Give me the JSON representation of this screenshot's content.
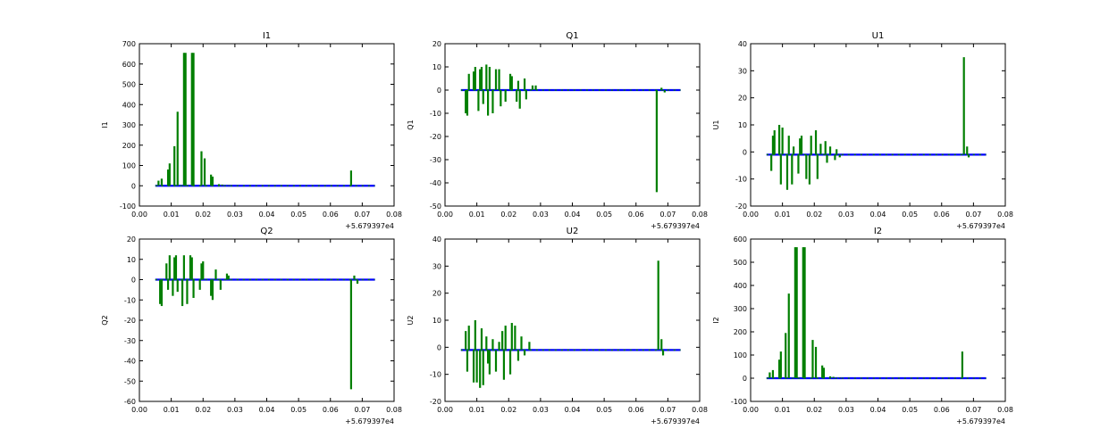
{
  "chart_data": [
    {
      "type": "line",
      "title": "I1",
      "ylabel": "I1",
      "xlim": [
        0.0,
        0.08
      ],
      "ylim": [
        -100,
        700
      ],
      "xticks": [
        "0.00",
        "0.01",
        "0.02",
        "0.03",
        "0.04",
        "0.05",
        "0.06",
        "0.07",
        "0.08"
      ],
      "yticks": [
        "-100",
        "0",
        "100",
        "200",
        "300",
        "400",
        "500",
        "600",
        "700"
      ],
      "x_offset_label": "+5.679397e4",
      "series": [
        {
          "color": "#0000ff",
          "x": [
            0.005,
            0.074
          ],
          "y": [
            0,
            0
          ]
        },
        {
          "color": "#007f00",
          "spikes": [
            [
              0.006,
              25
            ],
            [
              0.007,
              35
            ],
            [
              0.009,
              80
            ],
            [
              0.0095,
              110
            ],
            [
              0.011,
              195
            ],
            [
              0.012,
              365
            ],
            [
              0.014,
              655
            ],
            [
              0.0145,
              655
            ],
            [
              0.0165,
              655
            ],
            [
              0.017,
              655
            ],
            [
              0.0195,
              170
            ],
            [
              0.0205,
              135
            ],
            [
              0.0225,
              55
            ],
            [
              0.023,
              45
            ],
            [
              0.025,
              8
            ],
            [
              0.026,
              6
            ],
            [
              0.028,
              3
            ],
            [
              0.0665,
              75
            ]
          ]
        }
      ]
    },
    {
      "type": "line",
      "title": "Q1",
      "ylabel": "Q1",
      "xlim": [
        0.0,
        0.08
      ],
      "ylim": [
        -50,
        20
      ],
      "xticks": [
        "0.00",
        "0.01",
        "0.02",
        "0.03",
        "0.04",
        "0.05",
        "0.06",
        "0.07",
        "0.08"
      ],
      "yticks": [
        "-50",
        "-40",
        "-30",
        "-20",
        "-10",
        "0",
        "10",
        "20"
      ],
      "x_offset_label": "+5.679397e4",
      "series": [
        {
          "color": "#0000ff",
          "x": [
            0.005,
            0.074
          ],
          "y": [
            0,
            0
          ]
        },
        {
          "color": "#007f00",
          "spikes": [
            [
              0.0065,
              -10
            ],
            [
              0.007,
              -11
            ],
            [
              0.0075,
              7
            ],
            [
              0.009,
              8
            ],
            [
              0.0095,
              10
            ],
            [
              0.0105,
              -9
            ],
            [
              0.011,
              9
            ],
            [
              0.0115,
              10
            ],
            [
              0.012,
              -6
            ],
            [
              0.013,
              11
            ],
            [
              0.0135,
              -11
            ],
            [
              0.014,
              10
            ],
            [
              0.015,
              -10
            ],
            [
              0.016,
              9
            ],
            [
              0.017,
              9
            ],
            [
              0.0175,
              -7
            ],
            [
              0.019,
              -5
            ],
            [
              0.0205,
              7
            ],
            [
              0.021,
              6
            ],
            [
              0.0225,
              -5
            ],
            [
              0.023,
              4
            ],
            [
              0.0235,
              -8
            ],
            [
              0.025,
              5
            ],
            [
              0.0255,
              -4
            ],
            [
              0.0275,
              2
            ],
            [
              0.0285,
              2
            ],
            [
              0.0665,
              -44
            ],
            [
              0.068,
              1
            ],
            [
              0.069,
              -1
            ]
          ]
        }
      ]
    },
    {
      "type": "line",
      "title": "U1",
      "ylabel": "U1",
      "xlim": [
        0.0,
        0.08
      ],
      "ylim": [
        -20,
        40
      ],
      "xticks": [
        "0.00",
        "0.01",
        "0.02",
        "0.03",
        "0.04",
        "0.05",
        "0.06",
        "0.07",
        "0.08"
      ],
      "yticks": [
        "-20",
        "-10",
        "0",
        "10",
        "20",
        "30",
        "40"
      ],
      "x_offset_label": "+5.679397e4",
      "series": [
        {
          "color": "#0000ff",
          "x": [
            0.005,
            0.074
          ],
          "y": [
            -1,
            -1
          ]
        },
        {
          "color": "#007f00",
          "spikes": [
            [
              0.0065,
              -7
            ],
            [
              0.007,
              6
            ],
            [
              0.0075,
              8
            ],
            [
              0.009,
              10
            ],
            [
              0.0095,
              -12
            ],
            [
              0.01,
              9
            ],
            [
              0.0115,
              -14
            ],
            [
              0.012,
              6
            ],
            [
              0.013,
              -12
            ],
            [
              0.0135,
              2
            ],
            [
              0.015,
              -8
            ],
            [
              0.0155,
              5
            ],
            [
              0.016,
              6
            ],
            [
              0.0175,
              -10
            ],
            [
              0.0185,
              -12
            ],
            [
              0.019,
              6
            ],
            [
              0.0205,
              8
            ],
            [
              0.021,
              -10
            ],
            [
              0.022,
              3
            ],
            [
              0.0235,
              4
            ],
            [
              0.024,
              -4
            ],
            [
              0.025,
              2
            ],
            [
              0.0265,
              -3
            ],
            [
              0.027,
              1
            ],
            [
              0.028,
              -2
            ],
            [
              0.067,
              35
            ],
            [
              0.068,
              2
            ],
            [
              0.0685,
              -2
            ]
          ]
        }
      ]
    },
    {
      "type": "line",
      "title": "Q2",
      "ylabel": "Q2",
      "xlim": [
        0.0,
        0.08
      ],
      "ylim": [
        -60,
        20
      ],
      "xticks": [
        "0.00",
        "0.01",
        "0.02",
        "0.03",
        "0.04",
        "0.05",
        "0.06",
        "0.07",
        "0.08"
      ],
      "yticks": [
        "-60",
        "-50",
        "-40",
        "-30",
        "-20",
        "-10",
        "0",
        "10",
        "20"
      ],
      "x_offset_label": "+5.679397e4",
      "series": [
        {
          "color": "#0000ff",
          "x": [
            0.005,
            0.074
          ],
          "y": [
            0,
            0
          ]
        },
        {
          "color": "#007f00",
          "spikes": [
            [
              0.0065,
              -12
            ],
            [
              0.007,
              -13
            ],
            [
              0.0085,
              8
            ],
            [
              0.009,
              -5
            ],
            [
              0.0095,
              12
            ],
            [
              0.0105,
              -8
            ],
            [
              0.011,
              11
            ],
            [
              0.0115,
              12
            ],
            [
              0.012,
              -6
            ],
            [
              0.0135,
              -13
            ],
            [
              0.014,
              12
            ],
            [
              0.015,
              -12
            ],
            [
              0.016,
              12
            ],
            [
              0.0165,
              11
            ],
            [
              0.017,
              -9
            ],
            [
              0.019,
              -5
            ],
            [
              0.0195,
              8
            ],
            [
              0.02,
              9
            ],
            [
              0.0225,
              -8
            ],
            [
              0.023,
              -10
            ],
            [
              0.024,
              5
            ],
            [
              0.0255,
              -5
            ],
            [
              0.0275,
              3
            ],
            [
              0.028,
              2
            ],
            [
              0.0665,
              -54
            ],
            [
              0.0675,
              2
            ],
            [
              0.0685,
              -2
            ]
          ]
        }
      ]
    },
    {
      "type": "line",
      "title": "U2",
      "ylabel": "U2",
      "xlim": [
        0.0,
        0.08
      ],
      "ylim": [
        -20,
        40
      ],
      "xticks": [
        "0.00",
        "0.01",
        "0.02",
        "0.03",
        "0.04",
        "0.05",
        "0.06",
        "0.07",
        "0.08"
      ],
      "yticks": [
        "-20",
        "-10",
        "0",
        "10",
        "20",
        "30",
        "40"
      ],
      "x_offset_label": "+5.679397e4",
      "series": [
        {
          "color": "#0000ff",
          "x": [
            0.005,
            0.074
          ],
          "y": [
            -1,
            -1
          ]
        },
        {
          "color": "#007f00",
          "spikes": [
            [
              0.0065,
              6
            ],
            [
              0.007,
              -9
            ],
            [
              0.0075,
              8
            ],
            [
              0.009,
              -13
            ],
            [
              0.0095,
              10
            ],
            [
              0.01,
              -13
            ],
            [
              0.011,
              -15
            ],
            [
              0.0115,
              7
            ],
            [
              0.012,
              -14
            ],
            [
              0.013,
              4
            ],
            [
              0.0135,
              -6
            ],
            [
              0.014,
              -10
            ],
            [
              0.015,
              3
            ],
            [
              0.016,
              -9
            ],
            [
              0.017,
              2
            ],
            [
              0.018,
              6
            ],
            [
              0.0185,
              -12
            ],
            [
              0.019,
              8
            ],
            [
              0.0205,
              -10
            ],
            [
              0.021,
              9
            ],
            [
              0.022,
              8
            ],
            [
              0.023,
              -5
            ],
            [
              0.024,
              4
            ],
            [
              0.025,
              -3
            ],
            [
              0.0265,
              2
            ],
            [
              0.067,
              32
            ],
            [
              0.068,
              3
            ],
            [
              0.0685,
              -3
            ]
          ]
        }
      ]
    },
    {
      "type": "line",
      "title": "I2",
      "ylabel": "I2",
      "xlim": [
        0.0,
        0.08
      ],
      "ylim": [
        -100,
        600
      ],
      "xticks": [
        "0.00",
        "0.01",
        "0.02",
        "0.03",
        "0.04",
        "0.05",
        "0.06",
        "0.07",
        "0.08"
      ],
      "yticks": [
        "-100",
        "0",
        "100",
        "200",
        "300",
        "400",
        "500",
        "600"
      ],
      "x_offset_label": "+5.679397e4",
      "series": [
        {
          "color": "#0000ff",
          "x": [
            0.005,
            0.074
          ],
          "y": [
            0,
            0
          ]
        },
        {
          "color": "#007f00",
          "spikes": [
            [
              0.006,
              25
            ],
            [
              0.007,
              35
            ],
            [
              0.009,
              80
            ],
            [
              0.0095,
              115
            ],
            [
              0.011,
              195
            ],
            [
              0.012,
              365
            ],
            [
              0.014,
              565
            ],
            [
              0.0145,
              565
            ],
            [
              0.0165,
              565
            ],
            [
              0.017,
              565
            ],
            [
              0.0195,
              165
            ],
            [
              0.0205,
              135
            ],
            [
              0.0225,
              55
            ],
            [
              0.023,
              45
            ],
            [
              0.025,
              8
            ],
            [
              0.026,
              6
            ],
            [
              0.028,
              3
            ],
            [
              0.0665,
              115
            ]
          ]
        }
      ]
    }
  ]
}
